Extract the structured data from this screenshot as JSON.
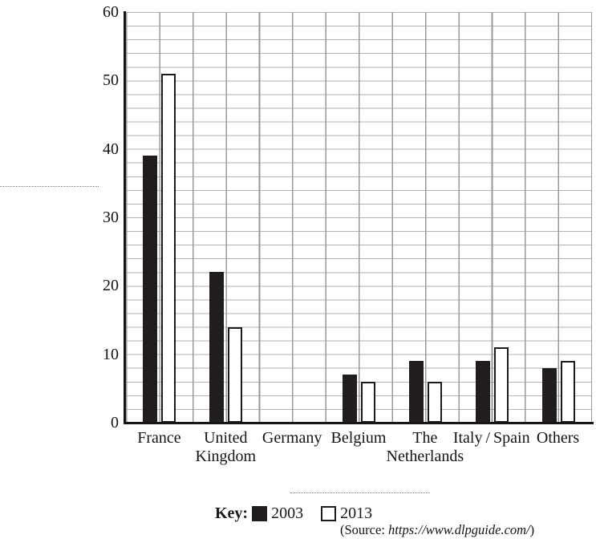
{
  "chart_data": {
    "type": "bar",
    "categories": [
      "France",
      "United Kingdom",
      "Germany",
      "Belgium",
      "The Netherlands",
      "Italy/Spain",
      "Others"
    ],
    "category_label_lines": [
      [
        "France"
      ],
      [
        "United",
        "Kingdom"
      ],
      [
        "Germany"
      ],
      [
        "Belgium"
      ],
      [
        "The",
        "Netherlands"
      ],
      [
        "Italy / Spain"
      ],
      [
        "Others"
      ]
    ],
    "series": [
      {
        "name": "2003",
        "color": "#211d1f",
        "values": [
          39,
          22,
          0,
          7,
          9,
          9,
          8
        ]
      },
      {
        "name": "2013",
        "color": "#ffffff",
        "values": [
          51,
          14,
          0,
          6,
          6,
          11,
          9
        ]
      }
    ],
    "ylim": [
      0,
      60
    ],
    "y_ticks": [
      0,
      10,
      20,
      30,
      40,
      50,
      60
    ],
    "grid": {
      "minor_step_y": 2,
      "vertical_divisions_per_category": 2,
      "grid_on": true
    },
    "legend": {
      "label": "Key:",
      "position": "bottom",
      "entries": [
        "2003",
        "2013"
      ]
    },
    "title": "",
    "xlabel": "",
    "ylabel": "",
    "source": {
      "prefix": "(Source: ",
      "url": "https://www.dlpguide.com/",
      "suffix": ")"
    }
  },
  "colors": {
    "bar_2003": "#211d1f",
    "bar_2013_fill": "#ffffff",
    "bar_2013_border": "#1b1b1b",
    "axis": "#151515",
    "grid_horizontal": "#b2b2b2",
    "grid_vertical": "#9a9a9a",
    "text": "#141414",
    "background": "#ffffff"
  }
}
